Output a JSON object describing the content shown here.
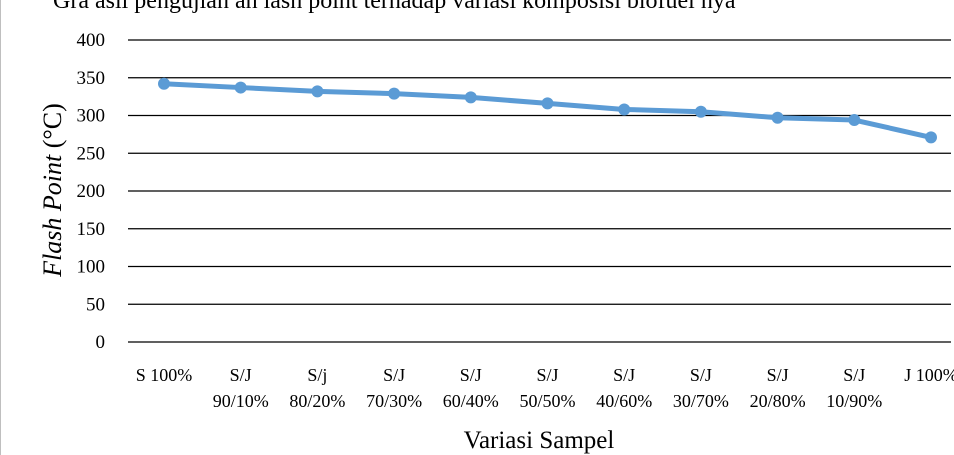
{
  "caption": "Gra    asil pengujian  an  lash point terhadap variasi komposisi biofuel  nya",
  "chart_data": {
    "type": "line",
    "categories": [
      [
        "S 100%"
      ],
      [
        "S/J",
        "90/10%"
      ],
      [
        "S/j",
        "80/20%"
      ],
      [
        "S/J",
        "70/30%"
      ],
      [
        "S/J",
        "60/40%"
      ],
      [
        "S/J",
        "50/50%"
      ],
      [
        "S/J",
        "40/60%"
      ],
      [
        "S/J",
        "30/70%"
      ],
      [
        "S/J",
        "20/80%"
      ],
      [
        "S/J",
        "10/90%"
      ],
      [
        "J 100%"
      ]
    ],
    "series": [
      {
        "values": [
          342,
          337,
          332,
          329,
          324,
          316,
          308,
          305,
          297,
          294,
          271
        ]
      }
    ],
    "ylim": [
      0,
      400
    ],
    "yticks": [
      "0",
      "50",
      "100",
      "150",
      "200",
      "250",
      "300",
      "350",
      "400"
    ],
    "xlabel": "Variasi Sampel",
    "ylabel_italic": "Flash Point",
    "ylabel_unit": " (°C)",
    "grid": true,
    "line_color": "#5b9bd5",
    "grid_color": "#000000"
  }
}
